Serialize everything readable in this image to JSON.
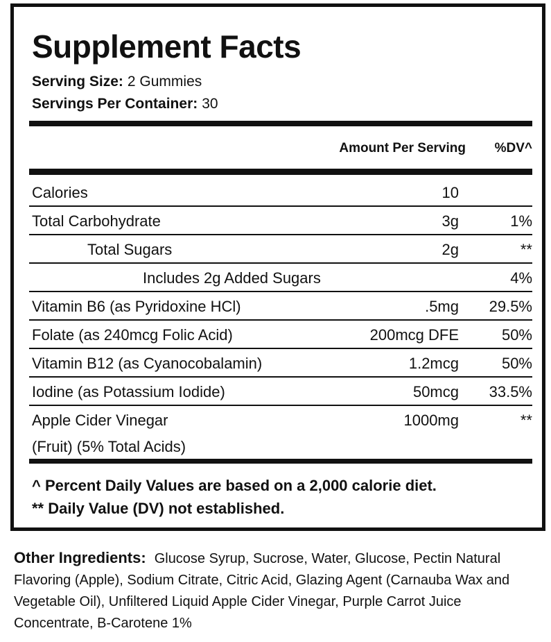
{
  "header": {
    "title": "Supplement Facts",
    "serving_size_label": "Serving Size:",
    "serving_size": "2 Gummies",
    "servings_label": "Servings Per Container:",
    "servings": "30"
  },
  "table": {
    "columns": [
      "Amount Per Serving",
      "%DV^"
    ],
    "rows": [
      {
        "name": "Calories",
        "amount": "10"
      },
      {
        "name": "Total Carbohydrate",
        "amount": "3g",
        "dv": "1%"
      },
      {
        "name": "Total Sugars",
        "amount": "2g",
        "dv": "**"
      },
      {
        "name": "Includes 2g Added Sugars",
        "dv": "4%"
      },
      {
        "name": "Vitamin B6 (as Pyridoxine HCl)",
        "amount": ".5mg",
        "dv": "29.5%"
      },
      {
        "name": "Folate (as 240mcg Folic Acid)",
        "amount": "200mcg DFE",
        "dv": "50%"
      },
      {
        "name": "Vitamin B12 (as Cyanocobalamin)",
        "amount": "1.2mcg",
        "dv": "50%"
      },
      {
        "name": "Iodine (as Potassium Iodide)",
        "amount": "50mcg",
        "dv": "33.5%"
      },
      {
        "name": "Apple Cider Vinegar",
        "name_line2": "(Fruit) (5% Total Acids)",
        "amount": "1000mg",
        "dv": "**"
      }
    ]
  },
  "footnotes": [
    "^ Percent Daily Values are based on a 2,000 calorie diet.",
    "** Daily Value (DV) not established."
  ],
  "other_ingredients": {
    "label": "Other Ingredients:",
    "text": "Glucose Syrup, Sucrose, Water, Glucose, Pectin Natural Flavoring (Apple), Sodium Citrate, Citric Acid, Glazing Agent (Carnauba Wax and Vegetable Oil), Unfiltered Liquid Apple Cider Vinegar, Purple Carrot Juice Concentrate, B-Carotene 1%"
  }
}
